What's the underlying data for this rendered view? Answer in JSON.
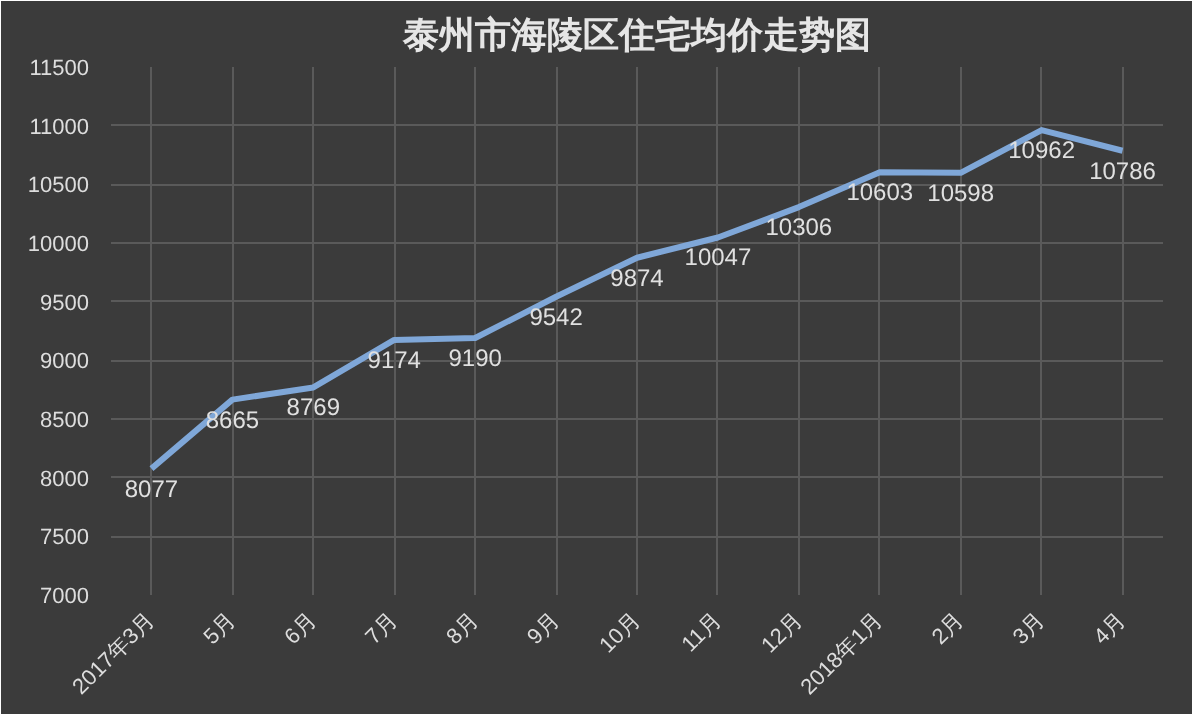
{
  "chart_data": {
    "type": "line",
    "title": "泰州市海陵区住宅均价走势图",
    "categories": [
      "2017年3月",
      "5月",
      "6月",
      "7月",
      "8月",
      "9月",
      "10月",
      "11月",
      "12月",
      "2018年1月",
      "2月",
      "3月",
      "4月"
    ],
    "series": [
      {
        "color": "#7fa7d8",
        "values": [
          8077,
          8665,
          8769,
          9174,
          9190,
          9542,
          9874,
          10047,
          10306,
          10603,
          10598,
          10962,
          10786
        ]
      }
    ],
    "ylim": [
      7000,
      11500
    ],
    "yticks": [
      7000,
      7500,
      8000,
      8500,
      9000,
      9500,
      10000,
      10500,
      11000,
      11500
    ],
    "grid": true,
    "data_labels": true,
    "marker": "none",
    "line_style": "solid"
  }
}
